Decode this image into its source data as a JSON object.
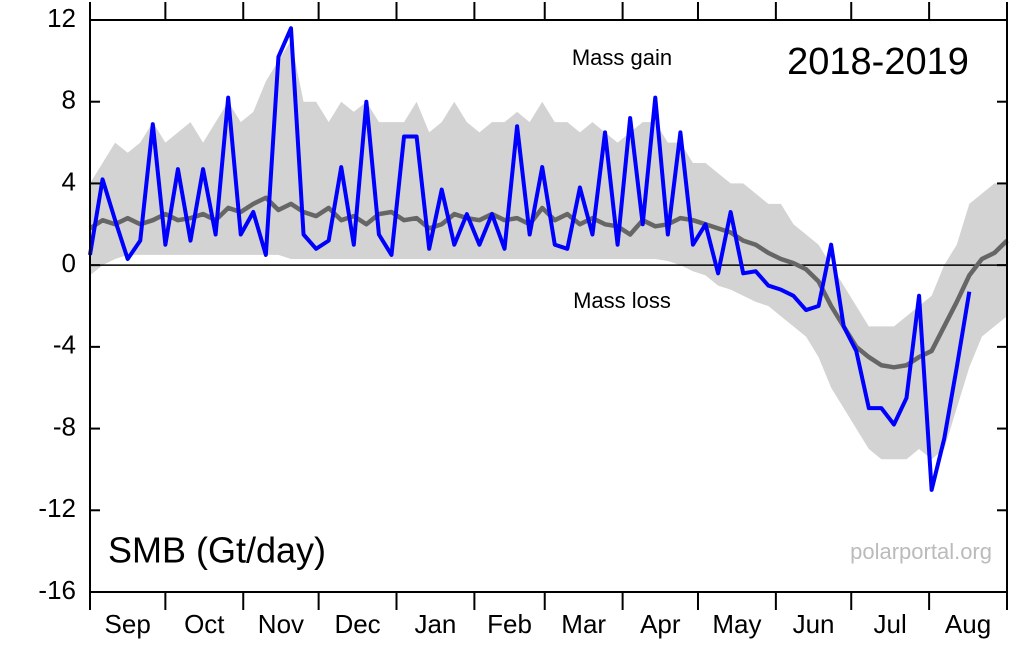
{
  "chart_data": {
    "type": "line",
    "title": "2018-2019",
    "ylabel": "SMB (Gt/day)",
    "annotations": [
      "Mass gain",
      "Mass loss"
    ],
    "source": "polarportal.org",
    "months": [
      "Sep",
      "Oct",
      "Nov",
      "Dec",
      "Jan",
      "Feb",
      "Mar",
      "Apr",
      "May",
      "Jun",
      "Jul",
      "Aug"
    ],
    "xlim": [
      0,
      365
    ],
    "xticks": [
      0,
      30,
      61,
      91,
      122,
      153,
      181,
      212,
      242,
      273,
      303,
      334,
      365
    ],
    "ylim": [
      -16,
      12
    ],
    "yticks": [
      12,
      8,
      4,
      0,
      -4,
      -8,
      -12,
      -16
    ],
    "x": [
      0,
      5,
      10,
      15,
      20,
      25,
      30,
      35,
      40,
      45,
      50,
      55,
      60,
      65,
      70,
      75,
      80,
      85,
      90,
      95,
      100,
      105,
      110,
      115,
      120,
      125,
      130,
      135,
      140,
      145,
      150,
      155,
      160,
      165,
      170,
      175,
      180,
      185,
      190,
      195,
      200,
      205,
      210,
      215,
      220,
      225,
      230,
      235,
      240,
      245,
      250,
      255,
      260,
      265,
      270,
      275,
      280,
      285,
      290,
      295,
      300,
      305,
      310,
      315,
      320,
      325,
      330,
      335,
      340,
      345,
      350,
      355,
      360,
      365
    ],
    "band": {
      "color": "#d3d3d3",
      "upper": [
        4,
        5,
        6,
        5.5,
        6,
        7,
        6,
        6.5,
        7,
        6,
        7,
        8,
        7,
        7.5,
        9,
        10,
        11,
        8,
        8,
        7,
        8,
        7.5,
        8,
        7,
        7,
        7,
        8,
        6.5,
        7,
        8,
        7,
        6.5,
        7,
        7,
        7.5,
        7,
        8,
        7,
        7,
        6.5,
        7,
        6.5,
        6,
        6.5,
        7,
        7,
        6,
        6,
        5,
        5,
        4.5,
        4,
        4,
        3.5,
        3,
        3,
        2,
        1.5,
        1,
        0,
        -1,
        -2,
        -3,
        -3,
        -3,
        -2.5,
        -2,
        -1.5,
        0,
        1,
        3,
        3.5,
        4,
        4
      ],
      "lower": [
        -0.5,
        0,
        0.3,
        0.5,
        0.5,
        0.5,
        0.5,
        0.5,
        0.5,
        0.5,
        0.5,
        0.5,
        0.5,
        0.5,
        0.5,
        0.5,
        0.3,
        0.3,
        0.3,
        0.3,
        0.3,
        0.3,
        0.3,
        0.3,
        0.3,
        0.3,
        0.3,
        0.3,
        0.3,
        0.3,
        0.3,
        0.3,
        0.3,
        0.3,
        0.3,
        0.3,
        0.3,
        0.3,
        0.3,
        0.3,
        0.3,
        0.3,
        0.3,
        0.3,
        0.3,
        0.3,
        0.2,
        0,
        -0.3,
        -0.5,
        -1,
        -1.2,
        -1.5,
        -1.8,
        -2,
        -2.5,
        -3,
        -3.5,
        -4.5,
        -6,
        -7,
        -8,
        -9,
        -9.5,
        -9.5,
        -9.5,
        -9,
        -9.5,
        -9,
        -7,
        -5,
        -3.5,
        -3,
        -2.5
      ]
    },
    "series": [
      {
        "color": "#666666",
        "values": [
          1.8,
          2.2,
          2.0,
          2.3,
          2.0,
          2.2,
          2.5,
          2.2,
          2.3,
          2.5,
          2.2,
          2.8,
          2.6,
          3.0,
          3.3,
          2.7,
          3.0,
          2.6,
          2.4,
          2.8,
          2.2,
          2.4,
          2.0,
          2.5,
          2.6,
          2.2,
          2.3,
          1.8,
          2.0,
          2.5,
          2.3,
          2.2,
          2.5,
          2.2,
          2.3,
          2.0,
          2.8,
          2.2,
          2.5,
          2.0,
          2.3,
          2.0,
          1.9,
          1.5,
          2.2,
          1.9,
          2.0,
          2.3,
          2.2,
          2.0,
          1.8,
          1.6,
          1.2,
          1.0,
          0.6,
          0.3,
          0.1,
          -0.2,
          -0.8,
          -2.0,
          -3.0,
          -4.0,
          -4.5,
          -4.9,
          -5.0,
          -4.9,
          -4.5,
          -4.2,
          -3.0,
          -1.8,
          -0.5,
          0.3,
          0.6,
          1.2
        ]
      },
      {
        "color": "#0000ff",
        "values": [
          0.5,
          4.2,
          2.2,
          0.3,
          1.2,
          6.9,
          1.0,
          4.7,
          1.2,
          4.7,
          1.5,
          8.2,
          1.5,
          2.6,
          0.5,
          10.2,
          11.6,
          1.5,
          0.8,
          1.2,
          4.8,
          1.0,
          8.0,
          1.5,
          0.5,
          6.3,
          6.3,
          0.8,
          3.7,
          1.0,
          2.5,
          1.0,
          2.5,
          0.8,
          6.8,
          1.5,
          4.8,
          1.0,
          0.8,
          3.8,
          1.5,
          6.5,
          1.0,
          7.2,
          2.0,
          8.2,
          1.5,
          6.5,
          1.0,
          2.0,
          -0.4,
          2.6,
          -0.4,
          -0.3,
          -1.0,
          -1.2,
          -1.5,
          -2.2,
          -2.0,
          1.0,
          -3.0,
          -4.2,
          -7.0,
          -7.0,
          -7.8,
          -6.5,
          -1.5,
          -11.0,
          -8.5,
          -5.0,
          -1.3,
          null,
          null,
          null
        ]
      }
    ]
  }
}
